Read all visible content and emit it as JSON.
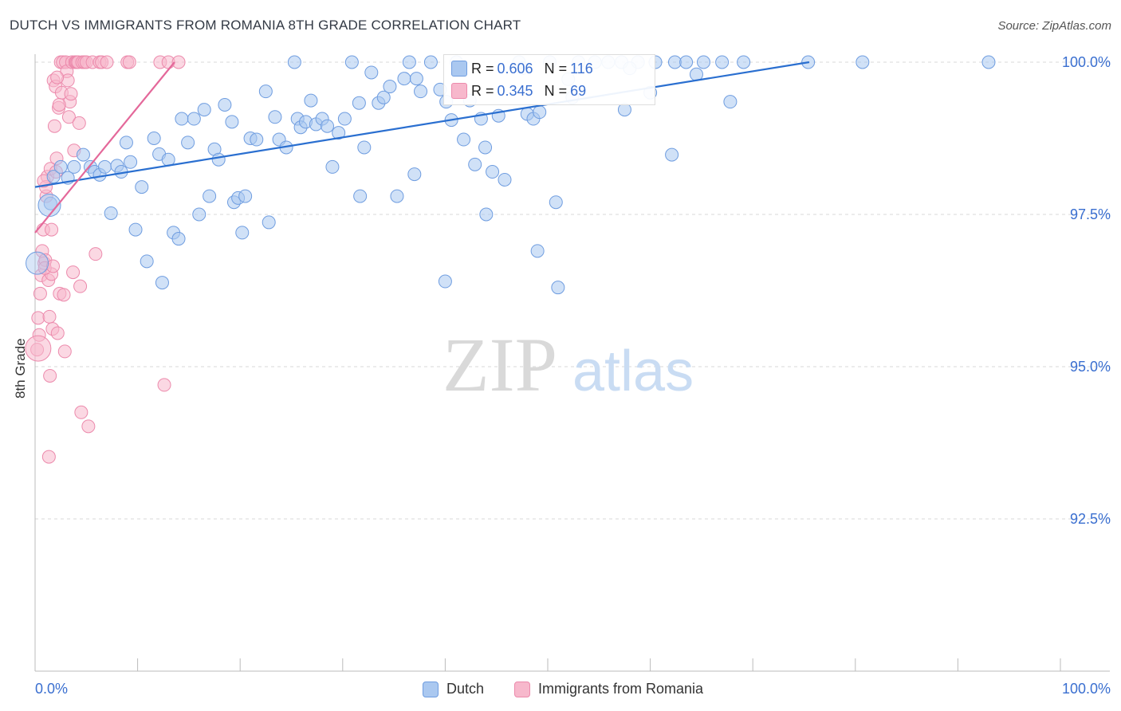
{
  "header": {
    "title": "DUTCH VS IMMIGRANTS FROM ROMANIA 8TH GRADE CORRELATION CHART",
    "source": "Source: ZipAtlas.com"
  },
  "watermark": {
    "zip": "ZIP",
    "atlas": "atlas"
  },
  "stats": {
    "dutch": {
      "r_label": "R =",
      "r": "0.606",
      "n_label": "N =",
      "n": "116"
    },
    "romania": {
      "r_label": "R =",
      "r": "0.345",
      "n_label": "N =",
      "n": "69"
    }
  },
  "legend": {
    "dutch": "Dutch",
    "romania": "Immigrants from Romania"
  },
  "colors": {
    "dutch_fill": "#aac8f0",
    "dutch_stroke": "#6f9de0",
    "dutch_line": "#2a6fd0",
    "romania_fill": "#f7b8cc",
    "romania_stroke": "#ec8aac",
    "romania_line": "#e4689a",
    "tick_label": "#3a6fd0",
    "grid": "#d8d8d8"
  },
  "chart_data": {
    "type": "scatter",
    "title": "DUTCH VS IMMIGRANTS FROM ROMANIA 8TH GRADE CORRELATION CHART",
    "xlabel": "",
    "ylabel": "8th Grade",
    "xlim": [
      0,
      100
    ],
    "ylim": [
      90.0,
      100.25
    ],
    "x_tick_labels": [
      "0.0%",
      "100.0%"
    ],
    "y_ticks": [
      92.5,
      95.0,
      97.5,
      100.0
    ],
    "y_tick_labels": [
      "92.5%",
      "95.0%",
      "97.5%",
      "100.0%"
    ],
    "grid": "horizontal dashed",
    "legend_position": "bottom-center",
    "series": [
      {
        "name": "Dutch",
        "trend": {
          "x": [
            0,
            75.5
          ],
          "y": [
            97.95,
            100.0
          ]
        },
        "points": [
          [
            1.5,
            97.68
          ],
          [
            1.8,
            98.12
          ],
          [
            2.5,
            98.28
          ],
          [
            3.2,
            98.1
          ],
          [
            3.8,
            98.28
          ],
          [
            4.7,
            98.48
          ],
          [
            5.4,
            98.28
          ],
          [
            5.8,
            98.2
          ],
          [
            6.3,
            98.15
          ],
          [
            6.8,
            98.28
          ],
          [
            7.4,
            97.52
          ],
          [
            8.0,
            98.3
          ],
          [
            8.4,
            98.2
          ],
          [
            8.9,
            98.68
          ],
          [
            9.3,
            98.36
          ],
          [
            9.8,
            97.25
          ],
          [
            10.4,
            97.95
          ],
          [
            10.9,
            96.73
          ],
          [
            11.6,
            98.75
          ],
          [
            12.1,
            98.49
          ],
          [
            12.4,
            96.38
          ],
          [
            13.0,
            98.4
          ],
          [
            13.5,
            97.2
          ],
          [
            14.0,
            97.1
          ],
          [
            14.3,
            99.07
          ],
          [
            14.9,
            98.68
          ],
          [
            15.5,
            99.07
          ],
          [
            16.5,
            99.22
          ],
          [
            16.0,
            97.5
          ],
          [
            17.0,
            97.8
          ],
          [
            17.5,
            98.57
          ],
          [
            17.9,
            98.4
          ],
          [
            18.5,
            99.3
          ],
          [
            19.2,
            99.02
          ],
          [
            19.4,
            97.7
          ],
          [
            19.8,
            97.77
          ],
          [
            20.5,
            97.8
          ],
          [
            20.2,
            97.2
          ],
          [
            21.0,
            98.75
          ],
          [
            21.6,
            98.73
          ],
          [
            22.5,
            99.52
          ],
          [
            22.8,
            97.37
          ],
          [
            23.4,
            99.1
          ],
          [
            23.8,
            98.73
          ],
          [
            24.5,
            98.6
          ],
          [
            25.3,
            100.0
          ],
          [
            25.6,
            99.07
          ],
          [
            25.9,
            98.93
          ],
          [
            26.4,
            99.02
          ],
          [
            26.9,
            99.37
          ],
          [
            27.4,
            98.98
          ],
          [
            28.0,
            99.07
          ],
          [
            28.5,
            98.95
          ],
          [
            29.0,
            98.28
          ],
          [
            29.6,
            98.84
          ],
          [
            30.2,
            99.07
          ],
          [
            30.9,
            100.0
          ],
          [
            31.6,
            99.33
          ],
          [
            32.1,
            98.6
          ],
          [
            31.7,
            97.8
          ],
          [
            32.8,
            99.83
          ],
          [
            33.5,
            99.33
          ],
          [
            34.0,
            99.42
          ],
          [
            34.6,
            99.6
          ],
          [
            35.3,
            97.8
          ],
          [
            36.0,
            99.73
          ],
          [
            36.5,
            100.0
          ],
          [
            37.2,
            99.73
          ],
          [
            37.6,
            99.52
          ],
          [
            37.0,
            98.16
          ],
          [
            38.6,
            100.0
          ],
          [
            39.5,
            99.55
          ],
          [
            40.1,
            99.35
          ],
          [
            40.6,
            99.05
          ],
          [
            41.1,
            100.0
          ],
          [
            41.8,
            98.73
          ],
          [
            42.4,
            99.37
          ],
          [
            42.9,
            98.32
          ],
          [
            43.5,
            99.07
          ],
          [
            43.9,
            98.6
          ],
          [
            44.6,
            98.2
          ],
          [
            45.2,
            99.12
          ],
          [
            45.8,
            98.07
          ],
          [
            47.2,
            100.0
          ],
          [
            48.0,
            99.15
          ],
          [
            48.6,
            99.07
          ],
          [
            49.2,
            99.18
          ],
          [
            50.2,
            100.0
          ],
          [
            50.8,
            97.7
          ],
          [
            52.0,
            99.72
          ],
          [
            53.0,
            100.0
          ],
          [
            52.4,
            99.42
          ],
          [
            54.6,
            100.0
          ],
          [
            55.9,
            100.0
          ],
          [
            57.2,
            100.0
          ],
          [
            57.5,
            99.22
          ],
          [
            58.8,
            100.0
          ],
          [
            60.5,
            100.0
          ],
          [
            62.4,
            100.0
          ],
          [
            62.1,
            98.48
          ],
          [
            63.5,
            100.0
          ],
          [
            65.2,
            100.0
          ],
          [
            67.0,
            100.0
          ],
          [
            67.8,
            99.35
          ],
          [
            69.1,
            100.0
          ],
          [
            75.4,
            100.0
          ],
          [
            80.7,
            100.0
          ],
          [
            93.0,
            100.0
          ],
          [
            44.0,
            97.5
          ],
          [
            49.0,
            96.9
          ],
          [
            51.0,
            96.3
          ],
          [
            47.5,
            99.9
          ],
          [
            60.0,
            99.5
          ],
          [
            64.5,
            99.8
          ],
          [
            58.0,
            99.9
          ],
          [
            40.0,
            96.4
          ]
        ]
      },
      {
        "name": "Immigrants from Romania",
        "trend": {
          "x": [
            0,
            13.6
          ],
          "y": [
            97.2,
            100.0
          ]
        },
        "points": [
          [
            0.2,
            95.28
          ],
          [
            0.3,
            95.8
          ],
          [
            0.4,
            95.52
          ],
          [
            0.5,
            96.2
          ],
          [
            0.6,
            96.5
          ],
          [
            0.7,
            96.9
          ],
          [
            0.8,
            97.25
          ],
          [
            0.9,
            96.7
          ],
          [
            1.0,
            96.75
          ],
          [
            1.1,
            97.8
          ],
          [
            1.2,
            98.12
          ],
          [
            1.3,
            96.42
          ],
          [
            1.4,
            95.82
          ],
          [
            1.5,
            98.25
          ],
          [
            1.6,
            96.52
          ],
          [
            1.7,
            95.62
          ],
          [
            1.8,
            99.7
          ],
          [
            1.9,
            98.95
          ],
          [
            2.0,
            99.6
          ],
          [
            2.1,
            98.42
          ],
          [
            2.2,
            95.55
          ],
          [
            2.3,
            99.25
          ],
          [
            2.4,
            96.2
          ],
          [
            2.5,
            100.0
          ],
          [
            2.6,
            99.5
          ],
          [
            2.7,
            100.0
          ],
          [
            2.8,
            96.18
          ],
          [
            2.9,
            95.25
          ],
          [
            3.0,
            100.0
          ],
          [
            3.1,
            99.85
          ],
          [
            3.2,
            99.7
          ],
          [
            3.3,
            99.1
          ],
          [
            3.4,
            99.35
          ],
          [
            3.5,
            99.48
          ],
          [
            3.6,
            100.0
          ],
          [
            3.7,
            96.55
          ],
          [
            3.8,
            98.55
          ],
          [
            3.9,
            100.0
          ],
          [
            4.0,
            100.0
          ],
          [
            4.1,
            100.0
          ],
          [
            4.2,
            100.0
          ],
          [
            4.3,
            99.0
          ],
          [
            4.4,
            96.32
          ],
          [
            4.5,
            94.25
          ],
          [
            4.6,
            100.0
          ],
          [
            4.8,
            100.0
          ],
          [
            5.0,
            100.0
          ],
          [
            5.2,
            94.02
          ],
          [
            5.6,
            100.0
          ],
          [
            5.9,
            96.85
          ],
          [
            6.3,
            100.0
          ],
          [
            6.5,
            100.0
          ],
          [
            7.0,
            100.0
          ],
          [
            9.0,
            100.0
          ],
          [
            9.2,
            100.0
          ],
          [
            12.2,
            100.0
          ],
          [
            12.6,
            94.7
          ],
          [
            13.0,
            100.0
          ],
          [
            14.0,
            100.0
          ],
          [
            1.35,
            93.52
          ],
          [
            1.45,
            94.85
          ],
          [
            0.95,
            96.62
          ],
          [
            1.05,
            97.95
          ],
          [
            0.85,
            98.05
          ],
          [
            1.75,
            96.65
          ],
          [
            1.6,
            97.25
          ],
          [
            2.15,
            99.75
          ],
          [
            2.35,
            99.3
          ],
          [
            2.05,
            98.2
          ]
        ]
      }
    ]
  }
}
